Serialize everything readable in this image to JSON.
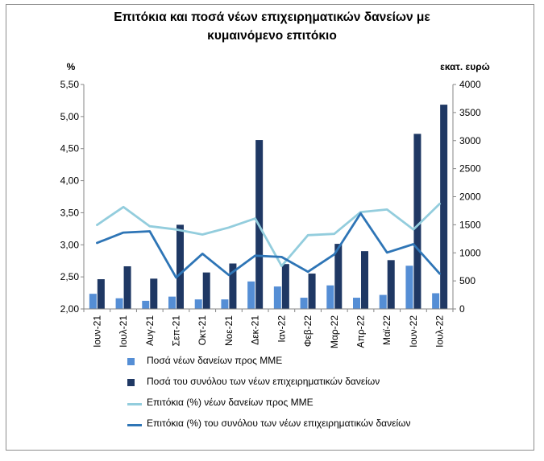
{
  "chart_data": {
    "type": "bar",
    "title_lines": [
      "Επιτόκια και ποσά νέων επιχειρηματικών δανείων με",
      "κυμαινόμενο επιτόκιο"
    ],
    "ylabel_left": "%",
    "ylabel_right": "εκατ. ευρώ",
    "ylim_left": [
      2.0,
      5.5
    ],
    "ylim_right": [
      0,
      4000
    ],
    "yticks_left": [
      "2,00",
      "2,50",
      "3,00",
      "3,50",
      "4,00",
      "4,50",
      "5,00",
      "5,50"
    ],
    "yticks_right": [
      "0",
      "500",
      "1000",
      "1500",
      "2000",
      "2500",
      "3000",
      "3500",
      "4000"
    ],
    "categories": [
      "Ιουν-21",
      "Ιουλ-21",
      "Αυγ-21",
      "Σεπ-21",
      "Οκτ-21",
      "Νοε-21",
      "Δεκ-21",
      "Ιαν-22",
      "Φεβ-22",
      "Μαρ-22",
      "Απρ-22",
      "Μαϊ-22",
      "Ιουν-22",
      "Ιουλ-22"
    ],
    "grid": false,
    "legend_position": "bottom",
    "series": [
      {
        "name": "Ποσά νέων δανείων προς ΜΜΕ",
        "kind": "bar",
        "axis": "right",
        "color": "#558ed5",
        "values": [
          270,
          190,
          145,
          220,
          170,
          170,
          490,
          400,
          200,
          420,
          200,
          250,
          770,
          280
        ]
      },
      {
        "name": "Ποσά του συνόλου των νέων επιχειρηματικών δανείων",
        "kind": "bar",
        "axis": "right",
        "color": "#1f3864",
        "values": [
          530,
          760,
          540,
          1500,
          650,
          810,
          3010,
          800,
          630,
          1160,
          1030,
          870,
          3120,
          3640
        ]
      },
      {
        "name": "Επιτόκια (%) νέων δανείων προς ΜΜΕ",
        "kind": "line",
        "axis": "left",
        "color": "#93cddd",
        "values": [
          3.31,
          3.59,
          3.29,
          3.24,
          3.16,
          3.27,
          3.41,
          2.67,
          3.15,
          3.17,
          3.51,
          3.55,
          3.24,
          3.64
        ]
      },
      {
        "name": "Επιτόκια (%) του συνόλου των νέων επιχειρηματικών δανείων",
        "kind": "line",
        "axis": "left",
        "color": "#2e75b6",
        "values": [
          3.03,
          3.19,
          3.21,
          2.49,
          2.86,
          2.53,
          2.83,
          2.81,
          2.58,
          2.85,
          3.49,
          2.88,
          3.01,
          2.55
        ]
      }
    ]
  }
}
